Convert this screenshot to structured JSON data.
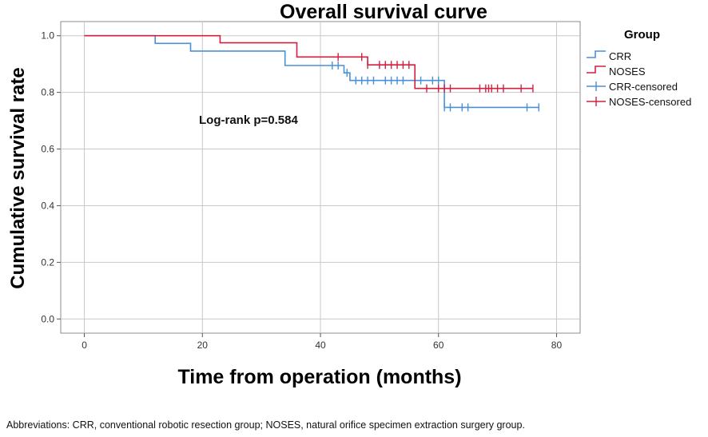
{
  "chart_data": {
    "type": "line",
    "title": "Overall survival curve",
    "xlabel": "Time from operation (months)",
    "ylabel": "Cumulative survival rate",
    "xlim": [
      -4,
      84
    ],
    "ylim": [
      -0.05,
      1.05
    ],
    "x_ticks": [
      0,
      20,
      40,
      60,
      80
    ],
    "y_ticks": [
      0.0,
      0.2,
      0.4,
      0.6,
      0.8,
      1.0
    ],
    "x_tick_labels": [
      "0",
      "20",
      "40",
      "60",
      "80"
    ],
    "y_tick_labels": [
      "0.0",
      "0.2",
      "0.4",
      "0.6",
      "0.8",
      "1.0"
    ],
    "grid": true,
    "legend_title": "Group",
    "legend_position": "right",
    "annotation": "Log-rank p=0.584",
    "series": [
      {
        "name": "CRR",
        "censored_name": "CRR-censored",
        "color": "#4a90d9",
        "steps": [
          [
            0,
            1.0
          ],
          [
            12,
            0.973
          ],
          [
            18,
            0.946
          ],
          [
            34,
            0.895
          ],
          [
            44,
            0.869
          ],
          [
            45,
            0.842
          ],
          [
            61,
            0.747
          ],
          [
            77,
            0.747
          ]
        ],
        "censored": [
          42,
          43,
          44.5,
          46,
          47,
          48,
          49,
          51,
          52,
          53,
          54,
          57,
          59,
          60,
          61,
          62,
          64,
          65,
          75,
          77
        ]
      },
      {
        "name": "NOSES",
        "censored_name": "NOSES-censored",
        "color": "#d0213f",
        "steps": [
          [
            0,
            1.0
          ],
          [
            23,
            0.975
          ],
          [
            36,
            0.925
          ],
          [
            48,
            0.897
          ],
          [
            56,
            0.814
          ],
          [
            76,
            0.814
          ]
        ],
        "censored": [
          43,
          47,
          48,
          50,
          51,
          52,
          53,
          54,
          55,
          58,
          60,
          61,
          62,
          67,
          68,
          68.5,
          69,
          70,
          71,
          74,
          76
        ]
      }
    ]
  },
  "footnote": "Abbreviations: CRR, conventional robotic resection group; NOSES, natural orifice specimen extraction surgery group."
}
